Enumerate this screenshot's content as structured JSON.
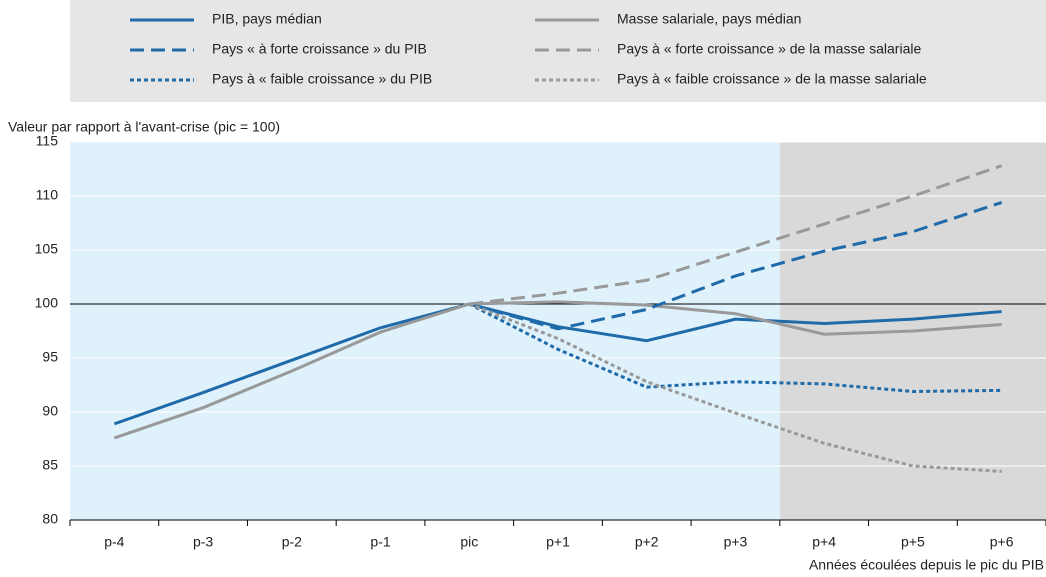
{
  "chart_data": {
    "type": "line",
    "y_label": "Valeur par rapport à l'avant-crise (pic = 100)",
    "x_label": "Années écoulées depuis le pic du PIB",
    "categories": [
      "p-4",
      "p-3",
      "p-2",
      "p-1",
      "pic",
      "p+1",
      "p+2",
      "p+3",
      "p+4",
      "p+5",
      "p+6"
    ],
    "series": [
      {
        "name": "PIB, pays médian",
        "color": "#1f6aa8",
        "dash": "solid",
        "values": [
          88.9,
          91.8,
          94.8,
          97.8,
          100,
          97.9,
          96.6,
          98.6,
          98.2,
          98.6,
          99.3
        ]
      },
      {
        "name": "Masse salariale, pays médian",
        "color": "#999999",
        "dash": "solid",
        "values": [
          87.6,
          90.4,
          93.8,
          97.4,
          100,
          100.2,
          99.9,
          99.1,
          97.2,
          97.5,
          98.1
        ]
      },
      {
        "name": "Pays « à forte croissance » du PIB",
        "color": "#1f6aa8",
        "dash": "dashed",
        "values": [
          null,
          null,
          null,
          null,
          100,
          97.7,
          99.5,
          102.6,
          104.9,
          106.7,
          109.4
        ]
      },
      {
        "name": "Pays à « forte croissance » de la masse salariale",
        "color": "#999999",
        "dash": "dashed",
        "values": [
          null,
          null,
          null,
          null,
          100,
          101.0,
          102.2,
          104.8,
          107.4,
          110.0,
          112.8
        ]
      },
      {
        "name": "Pays à « faible croissance » du PIB",
        "color": "#1f6aa8",
        "dash": "dotted",
        "values": [
          null,
          null,
          null,
          null,
          100,
          95.8,
          92.3,
          92.8,
          92.6,
          91.9,
          92.0
        ]
      },
      {
        "name": "Pays à « faible croissance » de la masse salariale",
        "color": "#999999",
        "dash": "dotted",
        "values": [
          null,
          null,
          null,
          null,
          100,
          96.8,
          92.8,
          89.9,
          87.1,
          85.0,
          84.5
        ]
      }
    ],
    "ylim": [
      80,
      115
    ],
    "yticks": [
      80,
      85,
      90,
      95,
      100,
      105,
      110,
      115
    ],
    "grid": true,
    "hline": 100
  }
}
